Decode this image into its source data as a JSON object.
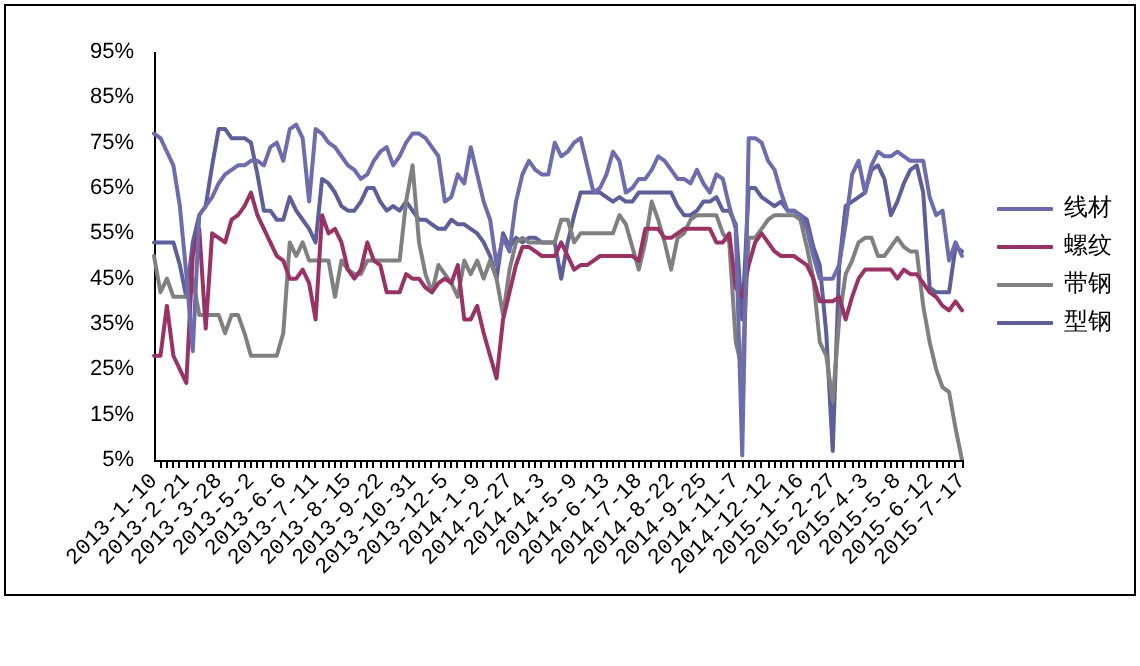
{
  "chart_data": {
    "type": "line",
    "categories": [
      "2013-1-10",
      null,
      null,
      null,
      null,
      "2013-2-21",
      null,
      null,
      null,
      null,
      "2013-3-28",
      null,
      null,
      null,
      null,
      "2013-5-2",
      null,
      null,
      null,
      null,
      "2013-6-6",
      null,
      null,
      null,
      null,
      "2013-7-11",
      null,
      null,
      null,
      null,
      "2013-8-15",
      null,
      null,
      null,
      null,
      "2013-9-22",
      null,
      null,
      null,
      null,
      "2013-10-31",
      null,
      null,
      null,
      null,
      "2013-12-5",
      null,
      null,
      null,
      null,
      "2014-1-9",
      null,
      null,
      null,
      null,
      "2014-2-27",
      null,
      null,
      null,
      null,
      "2014-4-3",
      null,
      null,
      null,
      null,
      "2014-5-9",
      null,
      null,
      null,
      null,
      "2014-6-13",
      null,
      null,
      null,
      null,
      "2014-7-18",
      null,
      null,
      null,
      null,
      "2014-8-22",
      null,
      null,
      null,
      null,
      "2014-9-25",
      null,
      null,
      null,
      null,
      "2014-11-7",
      null,
      null,
      null,
      null,
      "2014-12-12",
      null,
      null,
      null,
      null,
      "2015-1-16",
      null,
      null,
      null,
      null,
      "2015-2-27",
      null,
      null,
      null,
      null,
      "2015-4-3",
      null,
      null,
      null,
      null,
      "2015-5-8",
      null,
      null,
      null,
      null,
      "2015-6-12",
      null,
      null,
      null,
      null,
      "2015-7-17"
    ],
    "series": [
      {
        "name": "线材",
        "color": "#6d6dad",
        "values": [
          77,
          76,
          73,
          70,
          61,
          46,
          29,
          59,
          61,
          63,
          66,
          68,
          69,
          70,
          70,
          71,
          71,
          70,
          74,
          75,
          71,
          78,
          79,
          76,
          62,
          78,
          77,
          75,
          74,
          72,
          70,
          69,
          67,
          68,
          71,
          73,
          74,
          70,
          72,
          75,
          77,
          77,
          76,
          74,
          72,
          62,
          63,
          68,
          66,
          74,
          68,
          62,
          58,
          48,
          54,
          51,
          62,
          68,
          71,
          69,
          68,
          68,
          75,
          72,
          73,
          75,
          76,
          70,
          64,
          65,
          68,
          73,
          71,
          64,
          65,
          67,
          67,
          69,
          72,
          71,
          69,
          67,
          67,
          66,
          69,
          66,
          64,
          68,
          67,
          61,
          56,
          6,
          76,
          76,
          75,
          71,
          69,
          64,
          60,
          60,
          59,
          56,
          50,
          45,
          45,
          45,
          48,
          57,
          68,
          71,
          64,
          70,
          73,
          72,
          72,
          73,
          72,
          71,
          71,
          71,
          63,
          59,
          60,
          49,
          53,
          50
        ]
      },
      {
        "name": "螺纹",
        "color": "#993366",
        "values": [
          28,
          28,
          39,
          28,
          25,
          22,
          50,
          56,
          34,
          55,
          54,
          53,
          58,
          59,
          61,
          64,
          59,
          56,
          53,
          50,
          49,
          45,
          45,
          47,
          44,
          36,
          59,
          55,
          56,
          53,
          47,
          45,
          47,
          53,
          49,
          48,
          42,
          42,
          42,
          46,
          45,
          45,
          43,
          42,
          44,
          45,
          44,
          48,
          36,
          36,
          39,
          33,
          28,
          23,
          36,
          42,
          48,
          52,
          52,
          51,
          50,
          50,
          50,
          53,
          50,
          47,
          48,
          48,
          49,
          50,
          50,
          50,
          50,
          50,
          50,
          49,
          56,
          56,
          56,
          54,
          54,
          55,
          56,
          56,
          56,
          56,
          56,
          53,
          53,
          55,
          43,
          41,
          48,
          53,
          55,
          53,
          51,
          50,
          50,
          50,
          49,
          48,
          45,
          40,
          40,
          40,
          41,
          36,
          41,
          45,
          47,
          47,
          47,
          47,
          47,
          45,
          47,
          46,
          46,
          44,
          42,
          41,
          39,
          38,
          40,
          38
        ]
      },
      {
        "name": "带钢",
        "color": "#808080",
        "values": [
          50,
          42,
          45,
          41,
          41,
          41,
          45,
          37,
          37,
          37,
          37,
          33,
          37,
          37,
          33,
          28,
          28,
          28,
          28,
          28,
          33,
          53,
          50,
          53,
          49,
          49,
          49,
          49,
          41,
          49,
          47,
          46,
          46,
          49,
          49,
          49,
          49,
          49,
          49,
          62,
          70,
          53,
          46,
          42,
          48,
          46,
          44,
          41,
          49,
          46,
          49,
          45,
          49,
          45,
          37,
          47,
          53,
          54,
          53,
          53,
          53,
          53,
          53,
          58,
          58,
          53,
          55,
          55,
          55,
          55,
          55,
          55,
          59,
          57,
          52,
          47,
          53,
          62,
          58,
          53,
          47,
          54,
          55,
          58,
          59,
          59,
          59,
          59,
          55,
          53,
          31,
          25,
          54,
          54,
          56,
          58,
          59,
          59,
          59,
          59,
          58,
          52,
          45,
          31,
          28,
          18,
          36,
          46,
          49,
          53,
          54,
          54,
          50,
          50,
          52,
          54,
          52,
          51,
          51,
          39,
          31,
          25,
          21,
          20,
          12,
          5
        ]
      },
      {
        "name": "型钢",
        "color": "#5e5e99",
        "values": [
          53,
          53,
          53,
          53,
          48,
          41,
          53,
          59,
          61,
          70,
          78,
          78,
          76,
          76,
          76,
          75,
          68,
          60,
          60,
          58,
          58,
          63,
          60,
          58,
          56,
          53,
          67,
          66,
          64,
          61,
          60,
          60,
          62,
          65,
          65,
          62,
          60,
          61,
          60,
          62,
          60,
          58,
          58,
          57,
          56,
          56,
          58,
          57,
          57,
          56,
          55,
          53,
          50,
          45,
          55,
          52,
          54,
          53,
          54,
          54,
          53,
          53,
          53,
          45,
          53,
          59,
          64,
          64,
          64,
          64,
          63,
          62,
          63,
          62,
          62,
          64,
          64,
          64,
          64,
          64,
          64,
          61,
          59,
          59,
          60,
          62,
          62,
          63,
          60,
          60,
          57,
          36,
          65,
          65,
          63,
          62,
          61,
          62,
          60,
          60,
          59,
          58,
          52,
          48,
          33,
          7,
          48,
          61,
          62,
          63,
          64,
          69,
          70,
          67,
          59,
          62,
          66,
          69,
          70,
          64,
          43,
          42,
          42,
          42,
          52,
          51
        ]
      }
    ],
    "ylim": [
      5,
      95
    ],
    "yticks": [
      {
        "value": 5,
        "label": "5%"
      },
      {
        "value": 15,
        "label": "15%"
      },
      {
        "value": 25,
        "label": "25%"
      },
      {
        "value": 35,
        "label": "35%"
      },
      {
        "value": 45,
        "label": "45%"
      },
      {
        "value": 55,
        "label": "55%"
      },
      {
        "value": 65,
        "label": "65%"
      },
      {
        "value": 75,
        "label": "75%"
      },
      {
        "value": 85,
        "label": "85%"
      },
      {
        "value": 95,
        "label": "95%"
      }
    ],
    "grid": false,
    "legend": "right",
    "marker": "none",
    "line_style": "solid"
  }
}
